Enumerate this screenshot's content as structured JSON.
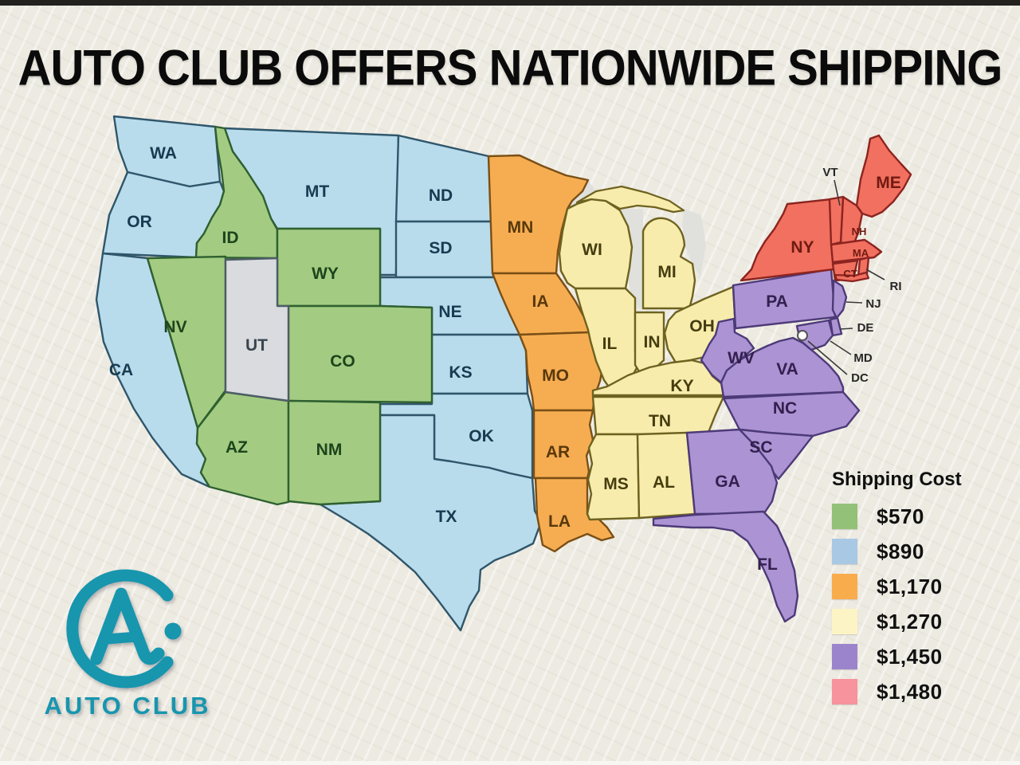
{
  "title": "AUTO CLUB OFFERS NATIONWIDE SHIPPING",
  "logo": {
    "brand": "AUTO CLUB",
    "accent_color": "#1796ae"
  },
  "legend": {
    "title": "Shipping Cost",
    "items": [
      {
        "label": "$570",
        "zone": "green",
        "color": "#93c178"
      },
      {
        "label": "$890",
        "zone": "blue",
        "color": "#a9c8e4"
      },
      {
        "label": "$1,170",
        "zone": "orange",
        "color": "#f9ac4c"
      },
      {
        "label": "$1,270",
        "zone": "yellow",
        "color": "#fdf4c6"
      },
      {
        "label": "$1,450",
        "zone": "purple",
        "color": "#9c84cc"
      },
      {
        "label": "$1,480",
        "zone": "red",
        "color": "#f6939c"
      }
    ]
  },
  "map": {
    "zone_styles": {
      "blue": {
        "fill": "#b9dcec",
        "stroke": "#2f566b",
        "label": "#173c51",
        "cost": "$890"
      },
      "green": {
        "fill": "#a3cc82",
        "stroke": "#2f6030",
        "label": "#1d441c",
        "cost": "$570"
      },
      "orange": {
        "fill": "#f6ad52",
        "stroke": "#7a4f15",
        "label": "#59390c",
        "cost": "$1,170"
      },
      "yellow": {
        "fill": "#f7ecab",
        "stroke": "#6e6220",
        "label": "#453d10",
        "cost": "$1,270"
      },
      "purple": {
        "fill": "#ac93d3",
        "stroke": "#4c3a78",
        "label": "#33204f",
        "cost": "$1,450"
      },
      "red": {
        "fill": "#f1705f",
        "stroke": "#8c2420",
        "label": "#701a12",
        "cost": "$1,480"
      },
      "gray": {
        "fill": "#d9dbdf",
        "stroke": "#4e5d66",
        "label": "#39454e",
        "cost": ""
      }
    },
    "states": [
      {
        "abbr": "WA",
        "zone": "blue"
      },
      {
        "abbr": "OR",
        "zone": "blue"
      },
      {
        "abbr": "CA",
        "zone": "blue"
      },
      {
        "abbr": "MT",
        "zone": "blue"
      },
      {
        "abbr": "ND",
        "zone": "blue"
      },
      {
        "abbr": "SD",
        "zone": "blue"
      },
      {
        "abbr": "NE",
        "zone": "blue"
      },
      {
        "abbr": "KS",
        "zone": "blue"
      },
      {
        "abbr": "OK",
        "zone": "blue"
      },
      {
        "abbr": "TX",
        "zone": "blue"
      },
      {
        "abbr": "ID",
        "zone": "green"
      },
      {
        "abbr": "NV",
        "zone": "green"
      },
      {
        "abbr": "WY",
        "zone": "green"
      },
      {
        "abbr": "CO",
        "zone": "green"
      },
      {
        "abbr": "AZ",
        "zone": "green"
      },
      {
        "abbr": "NM",
        "zone": "green"
      },
      {
        "abbr": "UT",
        "zone": "gray"
      },
      {
        "abbr": "MN",
        "zone": "orange"
      },
      {
        "abbr": "IA",
        "zone": "orange"
      },
      {
        "abbr": "MO",
        "zone": "orange"
      },
      {
        "abbr": "AR",
        "zone": "orange"
      },
      {
        "abbr": "LA",
        "zone": "orange"
      },
      {
        "abbr": "WI",
        "zone": "yellow"
      },
      {
        "abbr": "MI",
        "zone": "yellow"
      },
      {
        "abbr": "IL",
        "zone": "yellow"
      },
      {
        "abbr": "IN",
        "zone": "yellow"
      },
      {
        "abbr": "OH",
        "zone": "yellow"
      },
      {
        "abbr": "KY",
        "zone": "yellow"
      },
      {
        "abbr": "TN",
        "zone": "yellow"
      },
      {
        "abbr": "MS",
        "zone": "yellow"
      },
      {
        "abbr": "AL",
        "zone": "yellow"
      },
      {
        "abbr": "PA",
        "zone": "purple"
      },
      {
        "abbr": "WV",
        "zone": "purple"
      },
      {
        "abbr": "VA",
        "zone": "purple"
      },
      {
        "abbr": "NC",
        "zone": "purple"
      },
      {
        "abbr": "SC",
        "zone": "purple"
      },
      {
        "abbr": "GA",
        "zone": "purple"
      },
      {
        "abbr": "FL",
        "zone": "purple"
      },
      {
        "abbr": "NY",
        "zone": "red"
      },
      {
        "abbr": "ME",
        "zone": "red"
      },
      {
        "abbr": "NH",
        "zone": "red",
        "small": true
      },
      {
        "abbr": "MA",
        "zone": "red",
        "small": true
      },
      {
        "abbr": "CT",
        "zone": "red",
        "small": true
      },
      {
        "abbr": "VT",
        "zone": "red",
        "label_inline": false
      },
      {
        "abbr": "RI",
        "zone": "red",
        "label_inline": false
      },
      {
        "abbr": "NJ",
        "zone": "purple",
        "label_inline": false
      },
      {
        "abbr": "DE",
        "zone": "purple",
        "label_inline": false
      },
      {
        "abbr": "MD",
        "zone": "purple",
        "label_inline": false
      }
    ],
    "callouts": [
      {
        "label": "VT"
      },
      {
        "label": "RI"
      },
      {
        "label": "NJ"
      },
      {
        "label": "DE"
      },
      {
        "label": "MD"
      },
      {
        "label": "DC"
      }
    ]
  }
}
